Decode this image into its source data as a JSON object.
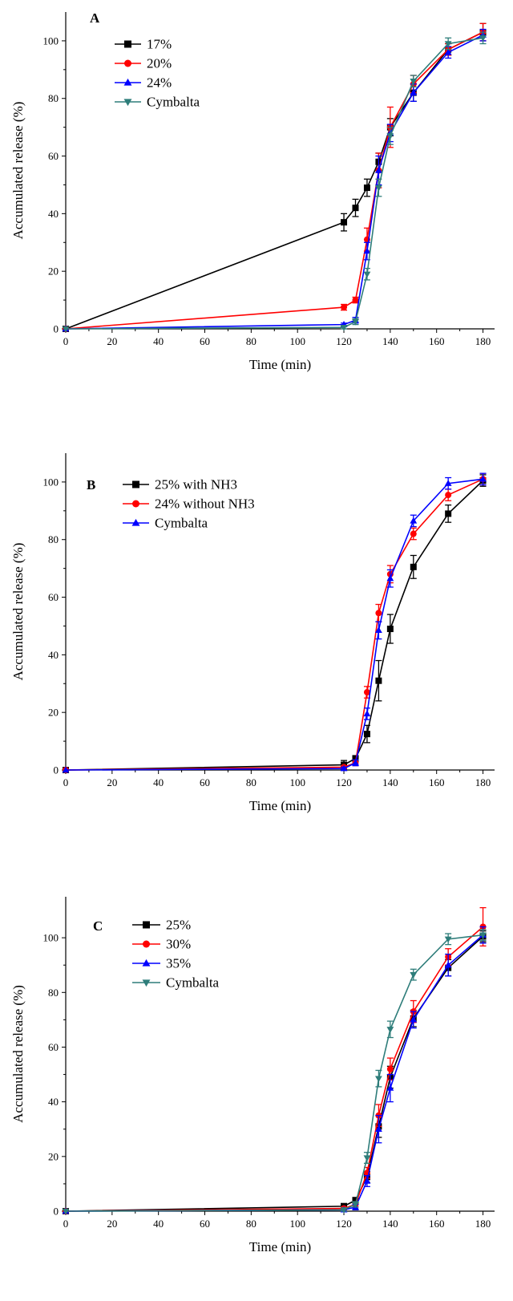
{
  "chart_data": [
    {
      "type": "line",
      "panel_label": "A",
      "xlabel": "Time (min)",
      "ylabel": "Accumulated release (%)",
      "xlim": [
        0,
        185
      ],
      "ylim": [
        0,
        110
      ],
      "xticks": [
        0,
        20,
        40,
        60,
        80,
        100,
        120,
        140,
        160,
        180
      ],
      "yticks": [
        0,
        20,
        40,
        60,
        80,
        100
      ],
      "legend_position": "top-left",
      "grid": false,
      "series": [
        {
          "name": "17%",
          "color": "#000000",
          "marker": "square",
          "x": [
            0,
            120,
            125,
            130,
            135,
            140,
            150,
            165,
            180
          ],
          "y": [
            0,
            37,
            42,
            49,
            58,
            70,
            82,
            97,
            103
          ],
          "err": [
            0,
            3,
            3,
            3,
            3,
            3,
            3,
            2,
            3
          ]
        },
        {
          "name": "20%",
          "color": "#ff0000",
          "marker": "circle",
          "x": [
            0,
            120,
            125,
            130,
            135,
            140,
            150,
            165,
            180
          ],
          "y": [
            0,
            7.5,
            10,
            31,
            55,
            70,
            85,
            97,
            103
          ],
          "err": [
            0,
            1,
            1,
            4,
            6,
            7,
            3,
            2,
            3
          ]
        },
        {
          "name": "24%",
          "color": "#0000ff",
          "marker": "triangle-up",
          "x": [
            0,
            120,
            125,
            130,
            135,
            140,
            150,
            165,
            180
          ],
          "y": [
            0,
            1.5,
            3,
            27,
            55,
            68,
            82,
            96,
            102
          ],
          "err": [
            0,
            0.5,
            1,
            3,
            5,
            3,
            3,
            2,
            2
          ]
        },
        {
          "name": "Cymbalta",
          "color": "#2e7d7a",
          "marker": "triangle-down",
          "x": [
            0,
            120,
            125,
            130,
            135,
            140,
            150,
            165,
            180
          ],
          "y": [
            0,
            0.5,
            2.5,
            19,
            49,
            67,
            86,
            99,
            101
          ],
          "err": [
            0,
            0.5,
            1,
            2,
            3,
            3,
            2,
            2,
            2
          ]
        }
      ]
    },
    {
      "type": "line",
      "panel_label": "B",
      "xlabel": "Time (min)",
      "ylabel": "Accumulated release (%)",
      "xlim": [
        0,
        185
      ],
      "ylim": [
        0,
        110
      ],
      "xticks": [
        0,
        20,
        40,
        60,
        80,
        100,
        120,
        140,
        160,
        180
      ],
      "yticks": [
        0,
        20,
        40,
        60,
        80,
        100
      ],
      "legend_position": "top-left",
      "grid": false,
      "series": [
        {
          "name": "25% with NH3",
          "color": "#000000",
          "marker": "square",
          "x": [
            0,
            120,
            125,
            130,
            135,
            140,
            150,
            165,
            180
          ],
          "y": [
            0,
            1.8,
            4,
            12.5,
            31,
            49,
            70.5,
            89,
            100.5
          ],
          "err": [
            0,
            1.5,
            1,
            3,
            7,
            5,
            4,
            3,
            2
          ]
        },
        {
          "name": "24% without NH3",
          "color": "#ff0000",
          "marker": "circle",
          "x": [
            0,
            120,
            125,
            130,
            135,
            140,
            150,
            165,
            180
          ],
          "y": [
            0,
            1,
            2.5,
            27,
            54.5,
            68,
            82,
            95.5,
            101
          ],
          "err": [
            0,
            0.5,
            1,
            2,
            3,
            3,
            2,
            2,
            2
          ]
        },
        {
          "name": "Cymbalta",
          "color": "#0000ff",
          "marker": "triangle-up",
          "x": [
            0,
            120,
            125,
            130,
            135,
            140,
            150,
            165,
            180
          ],
          "y": [
            0,
            0.5,
            2.5,
            19.5,
            48.5,
            66.5,
            86.5,
            99.5,
            101
          ],
          "err": [
            0,
            0.5,
            1,
            2,
            3,
            3,
            2,
            2,
            2
          ]
        }
      ]
    },
    {
      "type": "line",
      "panel_label": "C",
      "xlabel": "Time (min)",
      "ylabel": "Accumulated release (%)",
      "xlim": [
        0,
        185
      ],
      "ylim": [
        0,
        115
      ],
      "xticks": [
        0,
        20,
        40,
        60,
        80,
        100,
        120,
        140,
        160,
        180
      ],
      "yticks": [
        0,
        20,
        40,
        60,
        80,
        100
      ],
      "legend_position": "top-left",
      "grid": false,
      "series": [
        {
          "name": "25%",
          "color": "#000000",
          "marker": "square",
          "x": [
            0,
            120,
            125,
            130,
            135,
            140,
            150,
            165,
            180
          ],
          "y": [
            0,
            1.8,
            4,
            12.5,
            31,
            49,
            70.5,
            89,
            100.5
          ],
          "err": [
            0,
            1,
            1,
            2,
            4,
            4,
            3,
            3,
            2
          ]
        },
        {
          "name": "30%",
          "color": "#ff0000",
          "marker": "circle",
          "x": [
            0,
            120,
            125,
            130,
            135,
            140,
            150,
            165,
            180
          ],
          "y": [
            0,
            1,
            2.5,
            14,
            35,
            52,
            73,
            93,
            104
          ],
          "err": [
            0,
            0.5,
            1,
            2,
            4,
            4,
            4,
            3,
            7
          ]
        },
        {
          "name": "35%",
          "color": "#0000ff",
          "marker": "triangle-up",
          "x": [
            0,
            120,
            125,
            130,
            135,
            140,
            150,
            165,
            180
          ],
          "y": [
            0,
            0.5,
            1.5,
            11,
            30,
            45,
            70,
            90,
            101
          ],
          "err": [
            0,
            0.5,
            1,
            2,
            5,
            5,
            3,
            4,
            3
          ]
        },
        {
          "name": "Cymbalta",
          "color": "#2e7d7a",
          "marker": "triangle-down",
          "x": [
            0,
            120,
            125,
            130,
            135,
            140,
            150,
            165,
            180
          ],
          "y": [
            0,
            0.5,
            2.5,
            19.5,
            48.5,
            66.5,
            86.5,
            99.5,
            101
          ],
          "err": [
            0,
            0.5,
            1,
            2,
            3,
            3,
            2,
            2,
            2
          ]
        }
      ]
    }
  ]
}
